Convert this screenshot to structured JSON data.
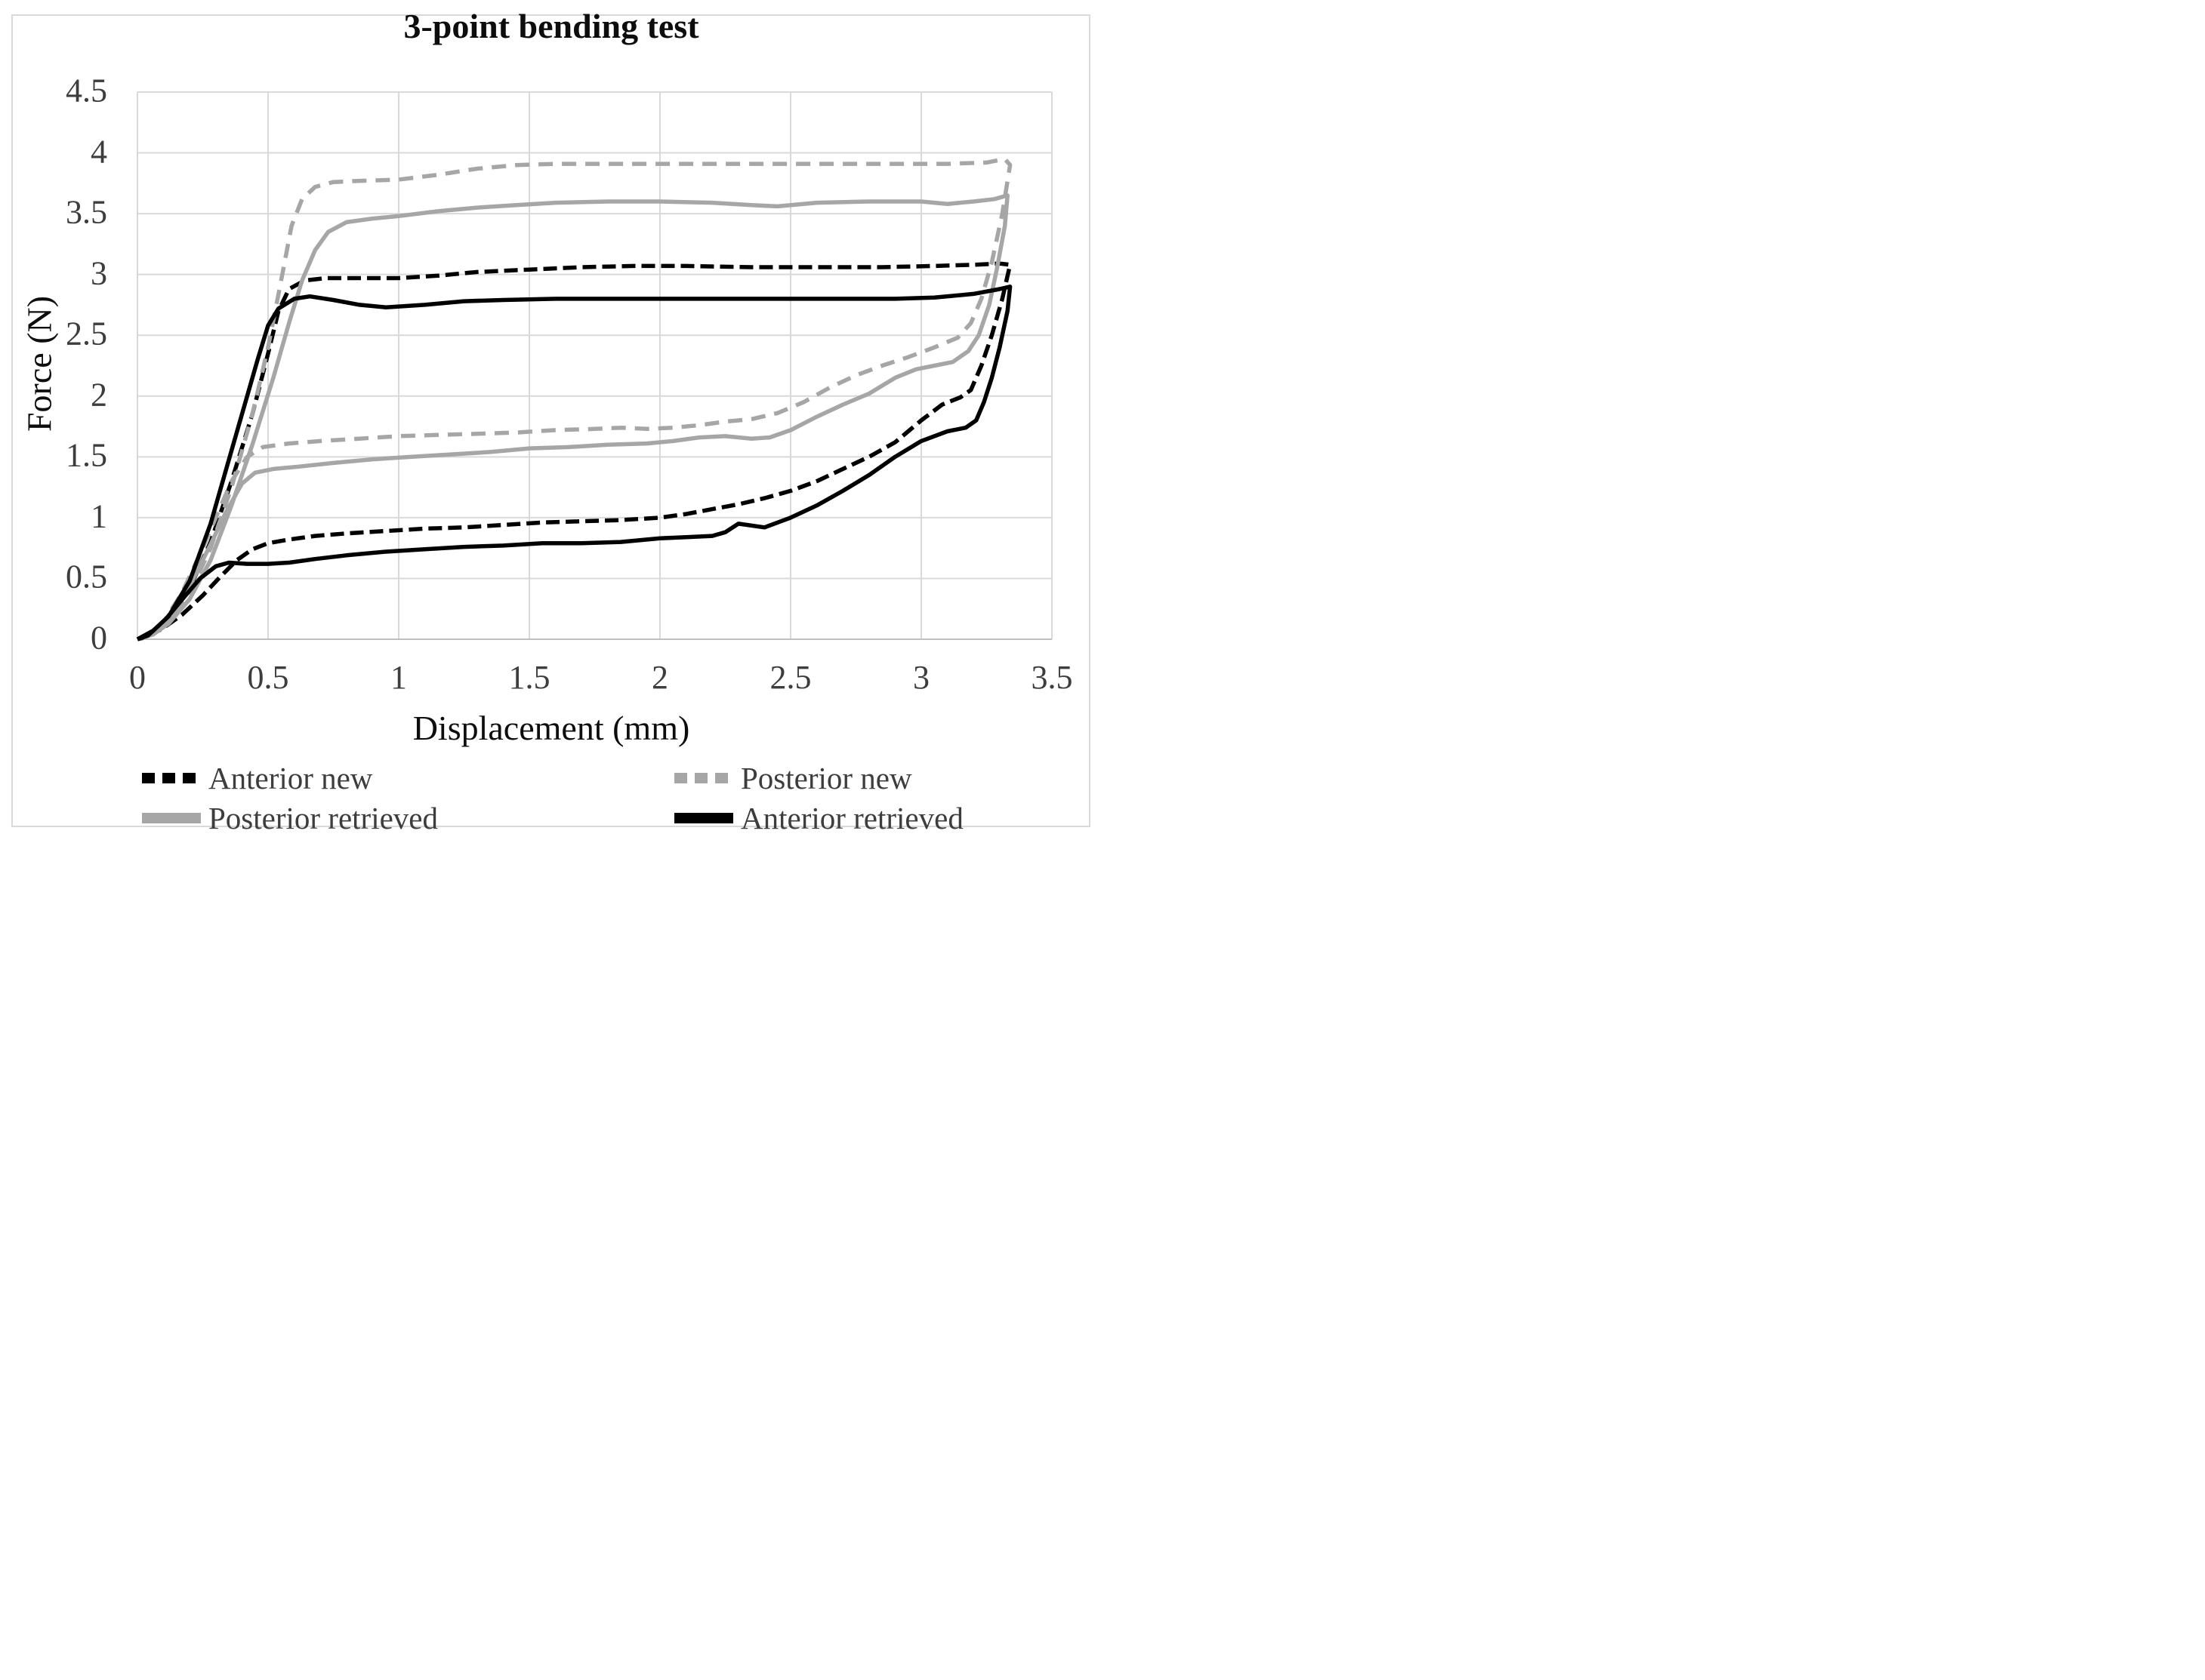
{
  "figure": {
    "title": "3-point bending test",
    "background_color": "#ffffff",
    "border_color": "#d9d9d9",
    "text_color": "#3d3d3d",
    "grid_color": "#d9d9d9"
  },
  "chart_data": {
    "type": "line",
    "title": "3-point bending test",
    "xlabel": "Displacement (mm)",
    "ylabel": "Force (N)",
    "xlim": [
      0,
      3.5
    ],
    "ylim": [
      0,
      4.5
    ],
    "grid": true,
    "legend_position": "bottom",
    "x_ticks": [
      {
        "v": 0,
        "label": "0"
      },
      {
        "v": 0.5,
        "label": "0.5"
      },
      {
        "v": 1,
        "label": "1"
      },
      {
        "v": 1.5,
        "label": "1.5"
      },
      {
        "v": 2,
        "label": "2"
      },
      {
        "v": 2.5,
        "label": "2.5"
      },
      {
        "v": 3,
        "label": "3"
      },
      {
        "v": 3.5,
        "label": "3.5"
      }
    ],
    "y_ticks": [
      {
        "v": 0,
        "label": "0"
      },
      {
        "v": 0.5,
        "label": "0.5"
      },
      {
        "v": 1,
        "label": "1"
      },
      {
        "v": 1.5,
        "label": "1.5"
      },
      {
        "v": 2,
        "label": "2"
      },
      {
        "v": 2.5,
        "label": "2.5"
      },
      {
        "v": 3,
        "label": "3"
      },
      {
        "v": 3.5,
        "label": "3.5"
      },
      {
        "v": 4,
        "label": "4"
      },
      {
        "v": 4.5,
        "label": "4.5"
      }
    ],
    "series": [
      {
        "name": "Anterior new",
        "color": "#000000",
        "style": "dashed",
        "points": [
          [
            0,
            0
          ],
          [
            0.06,
            0.06
          ],
          [
            0.12,
            0.17
          ],
          [
            0.2,
            0.42
          ],
          [
            0.28,
            0.8
          ],
          [
            0.36,
            1.3
          ],
          [
            0.44,
            1.85
          ],
          [
            0.5,
            2.35
          ],
          [
            0.54,
            2.7
          ],
          [
            0.58,
            2.88
          ],
          [
            0.64,
            2.95
          ],
          [
            0.72,
            2.97
          ],
          [
            0.85,
            2.97
          ],
          [
            1.0,
            2.97
          ],
          [
            1.15,
            2.99
          ],
          [
            1.3,
            3.02
          ],
          [
            1.5,
            3.04
          ],
          [
            1.7,
            3.06
          ],
          [
            1.9,
            3.07
          ],
          [
            2.1,
            3.07
          ],
          [
            2.35,
            3.06
          ],
          [
            2.6,
            3.06
          ],
          [
            2.85,
            3.06
          ],
          [
            3.05,
            3.07
          ],
          [
            3.2,
            3.08
          ],
          [
            3.3,
            3.09
          ],
          [
            3.34,
            3.08
          ],
          [
            3.31,
            2.8
          ],
          [
            3.27,
            2.5
          ],
          [
            3.23,
            2.25
          ],
          [
            3.19,
            2.05
          ],
          [
            3.15,
            1.99
          ],
          [
            3.08,
            1.93
          ],
          [
            3.0,
            1.8
          ],
          [
            2.9,
            1.62
          ],
          [
            2.8,
            1.5
          ],
          [
            2.7,
            1.4
          ],
          [
            2.6,
            1.3
          ],
          [
            2.5,
            1.22
          ],
          [
            2.4,
            1.16
          ],
          [
            2.3,
            1.11
          ],
          [
            2.2,
            1.07
          ],
          [
            2.1,
            1.03
          ],
          [
            2.0,
            1.0
          ],
          [
            1.85,
            0.98
          ],
          [
            1.7,
            0.97
          ],
          [
            1.55,
            0.96
          ],
          [
            1.4,
            0.94
          ],
          [
            1.25,
            0.92
          ],
          [
            1.1,
            0.91
          ],
          [
            0.95,
            0.89
          ],
          [
            0.8,
            0.87
          ],
          [
            0.68,
            0.85
          ],
          [
            0.58,
            0.82
          ],
          [
            0.5,
            0.79
          ],
          [
            0.44,
            0.74
          ],
          [
            0.38,
            0.65
          ],
          [
            0.32,
            0.52
          ],
          [
            0.25,
            0.36
          ],
          [
            0.17,
            0.2
          ],
          [
            0.09,
            0.08
          ],
          [
            0.02,
            0.01
          ],
          [
            0,
            0
          ]
        ]
      },
      {
        "name": "Posterior new",
        "color": "#a6a6a6",
        "style": "dashed",
        "points": [
          [
            0,
            0
          ],
          [
            0.06,
            0.05
          ],
          [
            0.12,
            0.15
          ],
          [
            0.2,
            0.38
          ],
          [
            0.28,
            0.75
          ],
          [
            0.36,
            1.25
          ],
          [
            0.44,
            1.85
          ],
          [
            0.5,
            2.4
          ],
          [
            0.55,
            2.95
          ],
          [
            0.59,
            3.4
          ],
          [
            0.63,
            3.62
          ],
          [
            0.68,
            3.72
          ],
          [
            0.75,
            3.76
          ],
          [
            0.85,
            3.77
          ],
          [
            1.0,
            3.78
          ],
          [
            1.15,
            3.82
          ],
          [
            1.3,
            3.87
          ],
          [
            1.45,
            3.9
          ],
          [
            1.6,
            3.91
          ],
          [
            1.8,
            3.91
          ],
          [
            2.0,
            3.91
          ],
          [
            2.2,
            3.91
          ],
          [
            2.45,
            3.91
          ],
          [
            2.7,
            3.91
          ],
          [
            2.9,
            3.91
          ],
          [
            3.1,
            3.91
          ],
          [
            3.25,
            3.92
          ],
          [
            3.32,
            3.95
          ],
          [
            3.34,
            3.9
          ],
          [
            3.31,
            3.5
          ],
          [
            3.27,
            3.1
          ],
          [
            3.23,
            2.8
          ],
          [
            3.19,
            2.6
          ],
          [
            3.14,
            2.48
          ],
          [
            3.05,
            2.4
          ],
          [
            2.95,
            2.32
          ],
          [
            2.85,
            2.25
          ],
          [
            2.75,
            2.17
          ],
          [
            2.65,
            2.07
          ],
          [
            2.55,
            1.95
          ],
          [
            2.45,
            1.86
          ],
          [
            2.35,
            1.81
          ],
          [
            2.25,
            1.79
          ],
          [
            2.15,
            1.76
          ],
          [
            2.05,
            1.74
          ],
          [
            1.95,
            1.73
          ],
          [
            1.85,
            1.74
          ],
          [
            1.75,
            1.73
          ],
          [
            1.6,
            1.72
          ],
          [
            1.45,
            1.7
          ],
          [
            1.3,
            1.69
          ],
          [
            1.15,
            1.68
          ],
          [
            1.0,
            1.67
          ],
          [
            0.85,
            1.65
          ],
          [
            0.7,
            1.63
          ],
          [
            0.58,
            1.61
          ],
          [
            0.48,
            1.58
          ],
          [
            0.42,
            1.5
          ],
          [
            0.36,
            1.3
          ],
          [
            0.3,
            1.0
          ],
          [
            0.24,
            0.7
          ],
          [
            0.17,
            0.38
          ],
          [
            0.1,
            0.14
          ],
          [
            0.03,
            0.02
          ],
          [
            0,
            0
          ]
        ]
      },
      {
        "name": "Posterior retrieved",
        "color": "#a6a6a6",
        "style": "solid",
        "points": [
          [
            0,
            0
          ],
          [
            0.06,
            0.04
          ],
          [
            0.12,
            0.13
          ],
          [
            0.2,
            0.33
          ],
          [
            0.28,
            0.65
          ],
          [
            0.36,
            1.1
          ],
          [
            0.44,
            1.6
          ],
          [
            0.52,
            2.15
          ],
          [
            0.58,
            2.6
          ],
          [
            0.63,
            2.95
          ],
          [
            0.68,
            3.2
          ],
          [
            0.73,
            3.35
          ],
          [
            0.8,
            3.43
          ],
          [
            0.9,
            3.46
          ],
          [
            1.0,
            3.48
          ],
          [
            1.15,
            3.52
          ],
          [
            1.3,
            3.55
          ],
          [
            1.45,
            3.57
          ],
          [
            1.6,
            3.59
          ],
          [
            1.8,
            3.6
          ],
          [
            2.0,
            3.6
          ],
          [
            2.2,
            3.59
          ],
          [
            2.35,
            3.57
          ],
          [
            2.45,
            3.56
          ],
          [
            2.6,
            3.59
          ],
          [
            2.8,
            3.6
          ],
          [
            3.0,
            3.6
          ],
          [
            3.1,
            3.58
          ],
          [
            3.2,
            3.6
          ],
          [
            3.28,
            3.62
          ],
          [
            3.33,
            3.65
          ],
          [
            3.32,
            3.4
          ],
          [
            3.29,
            3.05
          ],
          [
            3.26,
            2.75
          ],
          [
            3.22,
            2.5
          ],
          [
            3.18,
            2.37
          ],
          [
            3.12,
            2.28
          ],
          [
            3.05,
            2.25
          ],
          [
            2.98,
            2.22
          ],
          [
            2.9,
            2.15
          ],
          [
            2.8,
            2.02
          ],
          [
            2.7,
            1.93
          ],
          [
            2.6,
            1.83
          ],
          [
            2.5,
            1.72
          ],
          [
            2.42,
            1.66
          ],
          [
            2.35,
            1.65
          ],
          [
            2.25,
            1.67
          ],
          [
            2.15,
            1.66
          ],
          [
            2.05,
            1.63
          ],
          [
            1.95,
            1.61
          ],
          [
            1.8,
            1.6
          ],
          [
            1.65,
            1.58
          ],
          [
            1.5,
            1.57
          ],
          [
            1.35,
            1.54
          ],
          [
            1.2,
            1.52
          ],
          [
            1.05,
            1.5
          ],
          [
            0.9,
            1.48
          ],
          [
            0.75,
            1.45
          ],
          [
            0.62,
            1.42
          ],
          [
            0.52,
            1.4
          ],
          [
            0.45,
            1.37
          ],
          [
            0.4,
            1.28
          ],
          [
            0.34,
            1.05
          ],
          [
            0.28,
            0.78
          ],
          [
            0.21,
            0.48
          ],
          [
            0.13,
            0.2
          ],
          [
            0.05,
            0.04
          ],
          [
            0,
            0
          ]
        ]
      },
      {
        "name": "Anterior retrieved",
        "color": "#000000",
        "style": "solid",
        "points": [
          [
            0,
            0
          ],
          [
            0.06,
            0.07
          ],
          [
            0.12,
            0.19
          ],
          [
            0.2,
            0.48
          ],
          [
            0.28,
            0.95
          ],
          [
            0.34,
            1.4
          ],
          [
            0.4,
            1.85
          ],
          [
            0.46,
            2.3
          ],
          [
            0.5,
            2.58
          ],
          [
            0.54,
            2.72
          ],
          [
            0.6,
            2.8
          ],
          [
            0.66,
            2.82
          ],
          [
            0.75,
            2.79
          ],
          [
            0.85,
            2.75
          ],
          [
            0.95,
            2.73
          ],
          [
            1.1,
            2.75
          ],
          [
            1.25,
            2.78
          ],
          [
            1.4,
            2.79
          ],
          [
            1.6,
            2.8
          ],
          [
            1.8,
            2.8
          ],
          [
            2.0,
            2.8
          ],
          [
            2.2,
            2.8
          ],
          [
            2.45,
            2.8
          ],
          [
            2.7,
            2.8
          ],
          [
            2.9,
            2.8
          ],
          [
            3.05,
            2.81
          ],
          [
            3.2,
            2.84
          ],
          [
            3.3,
            2.88
          ],
          [
            3.34,
            2.9
          ],
          [
            3.33,
            2.7
          ],
          [
            3.3,
            2.4
          ],
          [
            3.27,
            2.15
          ],
          [
            3.24,
            1.95
          ],
          [
            3.21,
            1.8
          ],
          [
            3.17,
            1.74
          ],
          [
            3.1,
            1.71
          ],
          [
            3.0,
            1.63
          ],
          [
            2.9,
            1.5
          ],
          [
            2.8,
            1.35
          ],
          [
            2.7,
            1.22
          ],
          [
            2.6,
            1.1
          ],
          [
            2.5,
            1.0
          ],
          [
            2.4,
            0.92
          ],
          [
            2.3,
            0.95
          ],
          [
            2.25,
            0.88
          ],
          [
            2.2,
            0.85
          ],
          [
            2.1,
            0.84
          ],
          [
            2.0,
            0.83
          ],
          [
            1.85,
            0.8
          ],
          [
            1.7,
            0.79
          ],
          [
            1.55,
            0.79
          ],
          [
            1.4,
            0.77
          ],
          [
            1.25,
            0.76
          ],
          [
            1.1,
            0.74
          ],
          [
            0.95,
            0.72
          ],
          [
            0.8,
            0.69
          ],
          [
            0.68,
            0.66
          ],
          [
            0.58,
            0.63
          ],
          [
            0.5,
            0.62
          ],
          [
            0.42,
            0.62
          ],
          [
            0.35,
            0.63
          ],
          [
            0.3,
            0.6
          ],
          [
            0.24,
            0.5
          ],
          [
            0.18,
            0.35
          ],
          [
            0.11,
            0.17
          ],
          [
            0.04,
            0.03
          ],
          [
            0,
            0
          ]
        ]
      }
    ],
    "legend": [
      {
        "series_index": 0,
        "row": 0,
        "col": 0
      },
      {
        "series_index": 1,
        "row": 0,
        "col": 1
      },
      {
        "series_index": 2,
        "row": 1,
        "col": 0
      },
      {
        "series_index": 3,
        "row": 1,
        "col": 1
      }
    ]
  }
}
